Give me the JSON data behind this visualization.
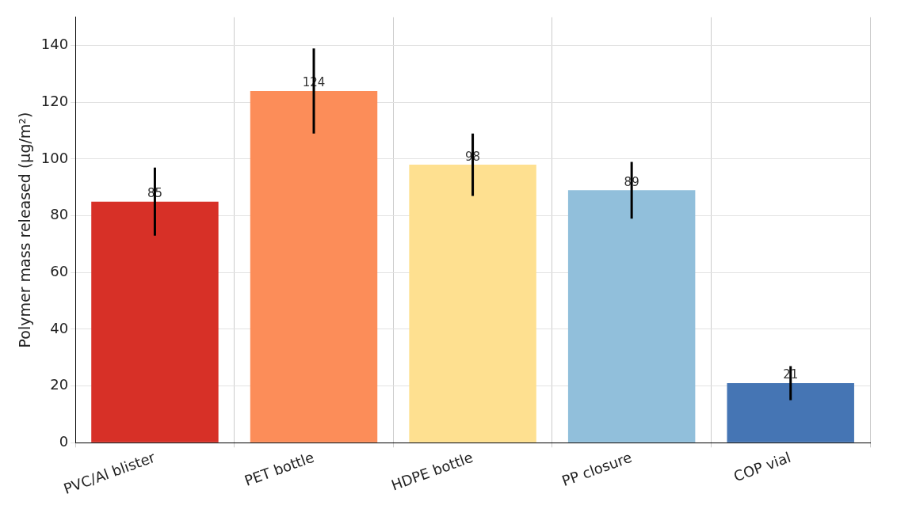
{
  "chart_data": {
    "type": "bar",
    "ylabel": "Polymer mass released (µg/m²)",
    "categories": [
      "PVC/Al blister",
      "PET bottle",
      "HDPE bottle",
      "PP closure",
      "COP vial"
    ],
    "values": [
      85,
      124,
      98,
      89,
      21
    ],
    "colors": [
      "#d73027",
      "#fc8d59",
      "#fee090",
      "#91bfdb",
      "#4575b4"
    ],
    "errors": [
      12,
      15,
      11,
      10,
      6
    ],
    "ylim": [
      0,
      150
    ],
    "yticks": [
      0,
      20,
      40,
      60,
      80,
      100,
      120,
      140
    ],
    "grid": true,
    "data_labels": true,
    "legend": false
  }
}
